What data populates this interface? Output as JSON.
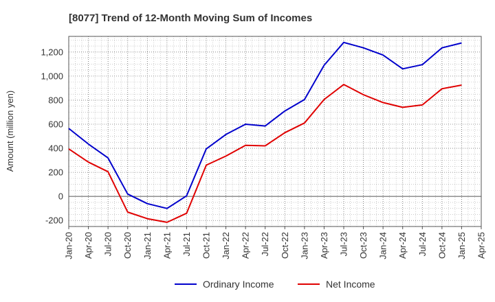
{
  "chart_data": {
    "type": "line",
    "title": "[8077]  Trend of 12-Month Moving Sum of Incomes",
    "xlabel": "",
    "ylabel": "Amount (million yen)",
    "ylim": [
      -250,
      1330
    ],
    "yticks": [
      -200,
      0,
      200,
      400,
      600,
      800,
      1000,
      1200
    ],
    "ytick_labels": [
      "-200",
      "0",
      "200",
      "400",
      "600",
      "800",
      "1,000",
      "1,200"
    ],
    "categories": [
      "Jan-20",
      "Apr-20",
      "Jul-20",
      "Oct-20",
      "Jan-21",
      "Apr-21",
      "Jul-21",
      "Oct-21",
      "Jan-22",
      "Apr-22",
      "Jul-22",
      "Oct-22",
      "Jan-23",
      "Apr-23",
      "Jul-23",
      "Oct-23",
      "Jan-24",
      "Apr-24",
      "Jul-24",
      "Oct-24",
      "Jan-25",
      "Apr-25"
    ],
    "grid": true,
    "legend_position": "bottom-center",
    "series": [
      {
        "name": "Ordinary Income",
        "color": "#0000cc",
        "values": [
          565,
          435,
          320,
          20,
          -60,
          -100,
          5,
          395,
          515,
          600,
          585,
          710,
          805,
          1090,
          1280,
          1235,
          1175,
          1060,
          1095,
          1235,
          1275,
          null
        ]
      },
      {
        "name": "Net Income",
        "color": "#e00000",
        "values": [
          395,
          285,
          205,
          -130,
          -185,
          -215,
          -140,
          260,
          335,
          425,
          420,
          530,
          610,
          805,
          930,
          845,
          780,
          740,
          760,
          895,
          925,
          null
        ]
      }
    ]
  }
}
